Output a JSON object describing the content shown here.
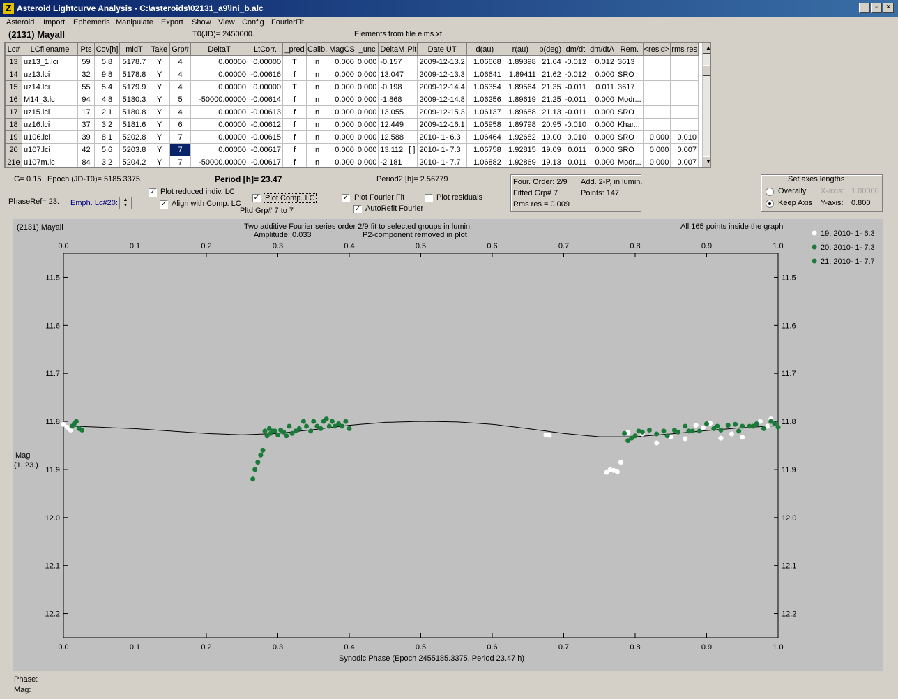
{
  "window": {
    "icon_letter": "Z",
    "title": "Asteroid Lightcurve Analysis - C:\\asteroids\\02131_a9\\ini_b.alc",
    "minimize": "_",
    "restore": "▫",
    "close": "×"
  },
  "menu": [
    "Asteroid",
    "Import",
    "Ephemeris",
    "Manipulate",
    "Export",
    "Show",
    "View",
    "Config",
    "FourierFit"
  ],
  "header": {
    "asteroid": "(2131) Mayall",
    "t0": "T0(JD)= 2450000.",
    "elements": "Elements from file elms.xt"
  },
  "table": {
    "columns": [
      "Lc#",
      "LCfilename",
      "Pts",
      "Cov[h]",
      "midT",
      "Take",
      "Grp#",
      "DeltaT",
      "LtCorr.",
      "_pred",
      "Calib.",
      "MagCS",
      "_unc",
      "DeltaM",
      "Plt",
      "Date UT",
      "d(au)",
      "r(au)",
      "p(deg)",
      "dm/dt",
      "dm/dtA",
      "Rem.",
      "<resid>",
      "rms res"
    ],
    "rows": [
      [
        "13",
        "uz13_1.lci",
        "59",
        "5.8",
        "5178.7",
        "Y",
        "4",
        "0.00000",
        "0.00000",
        "T",
        "n",
        "0.000",
        "0.000",
        "-0.157",
        "",
        "2009-12-13.2",
        "1.06668",
        "1.89398",
        "21.64",
        "-0.012",
        "0.012",
        "3613",
        "",
        ""
      ],
      [
        "14",
        "uz13.lci",
        "32",
        "9.8",
        "5178.8",
        "Y",
        "4",
        "0.00000",
        "-0.00616",
        "f",
        "n",
        "0.000",
        "0.000",
        "13.047",
        "",
        "2009-12-13.3",
        "1.06641",
        "1.89411",
        "21.62",
        "-0.012",
        "0.000",
        "SRO",
        "",
        ""
      ],
      [
        "15",
        "uz14.lci",
        "55",
        "5.4",
        "5179.9",
        "Y",
        "4",
        "0.00000",
        "0.00000",
        "T",
        "n",
        "0.000",
        "0.000",
        "-0.198",
        "",
        "2009-12-14.4",
        "1.06354",
        "1.89564",
        "21.35",
        "-0.011",
        "0.011",
        "3617",
        "",
        ""
      ],
      [
        "16",
        "M14_3.lc",
        "94",
        "4.8",
        "5180.3",
        "Y",
        "5",
        "-50000.00000",
        "-0.00614",
        "f",
        "n",
        "0.000",
        "0.000",
        "-1.868",
        "",
        "2009-12-14.8",
        "1.06256",
        "1.89619",
        "21.25",
        "-0.011",
        "0.000",
        "Modr...",
        "",
        ""
      ],
      [
        "17",
        "uz15.lci",
        "17",
        "2.1",
        "5180.8",
        "Y",
        "4",
        "0.00000",
        "-0.00613",
        "f",
        "n",
        "0.000",
        "0.000",
        "13.055",
        "",
        "2009-12-15.3",
        "1.06137",
        "1.89688",
        "21.13",
        "-0.011",
        "0.000",
        "SRO",
        "",
        ""
      ],
      [
        "18",
        "uz16.lci",
        "37",
        "3.2",
        "5181.6",
        "Y",
        "6",
        "0.00000",
        "-0.00612",
        "f",
        "n",
        "0.000",
        "0.000",
        "12.449",
        "",
        "2009-12-16.1",
        "1.05958",
        "1.89798",
        "20.95",
        "-0.010",
        "0.000",
        "Khar...",
        "",
        ""
      ],
      [
        "19",
        "u106.lci",
        "39",
        "8.1",
        "5202.8",
        "Y",
        "7",
        "0.00000",
        "-0.00615",
        "f",
        "n",
        "0.000",
        "0.000",
        "12.588",
        "",
        "2010- 1- 6.3",
        "1.06464",
        "1.92682",
        "19.00",
        "0.010",
        "0.000",
        "SRO",
        "0.000",
        "0.010"
      ],
      [
        "20",
        "u107.lci",
        "42",
        "5.6",
        "5203.8",
        "Y",
        "7",
        "0.00000",
        "-0.00617",
        "f",
        "n",
        "0.000",
        "0.000",
        "13.112",
        "[ ]",
        "2010- 1- 7.3",
        "1.06758",
        "1.92815",
        "19.09",
        "0.011",
        "0.000",
        "SRO",
        "0.000",
        "0.007"
      ],
      [
        "21e",
        "u107m.lc",
        "84",
        "3.2",
        "5204.2",
        "Y",
        "7",
        "-50000.00000",
        "-0.00617",
        "f",
        "n",
        "0.000",
        "0.000",
        "-2.181",
        "",
        "2010- 1- 7.7",
        "1.06882",
        "1.92869",
        "19.13",
        "0.011",
        "0.000",
        "Modr...",
        "0.000",
        "0.007"
      ]
    ]
  },
  "controls": {
    "g": "G= 0.15",
    "epoch": "Epoch (JD-T0)= 5185.3375",
    "period": "Period [h]= 23.47",
    "period2": "Period2 [h]= 2.56779",
    "phaseref": "PhaseRef= 23.",
    "emph": "Emph. Lc#20:",
    "plot_reduced": "Plot reduced indiv. LC",
    "align": "Align with Comp. LC",
    "plot_comp": "Plot Comp. LC",
    "plotted_grp": "Pltd Grp#  7   to   7",
    "plot_fourier": "Plot Fourier Fit",
    "autorefit": "AutoRefit Fourier",
    "plot_residuals": "Plot residuals",
    "four_order": "Four. Order:  2/9",
    "add2p": "Add. 2-P, in lumin.",
    "fitted_grp": "Fitted Grp# 7",
    "points": "Points: 147",
    "rms": "Rms res      = 0.009",
    "axes_title": "Set axes lengths",
    "overally": "Overally",
    "keep_axis": "Keep Axis",
    "xaxis_lbl": "X-axis:",
    "xaxis_val": "1.00000",
    "yaxis_lbl": "Y-axis:",
    "yaxis_val": "0.800"
  },
  "graph": {
    "asteroid": "(2131) Mayall",
    "title1": "Two additive Fourier series order 2/9 fit to selected groups in lumin.",
    "title2": "Amplitude: 0.033",
    "title3": "P2-component removed in plot",
    "inside": "All 165 points inside the graph",
    "ylabel1": "Mag",
    "ylabel2": "(1, 23.)",
    "xlabel": "Synodic Phase (Epoch 2455185.3375, Period 23.47 h)",
    "phase_readout": "Phase:",
    "mag_readout": "Mag:"
  },
  "colors": {
    "white_series": "#ffffff",
    "green_series": "#1a7a3a",
    "curve": "#000000"
  },
  "chart_data": {
    "type": "scatter",
    "xlabel": "Synodic Phase (Epoch 2455185.3375, Period 23.47 h)",
    "ylabel": "Mag (1, 23.)",
    "xlim": [
      0.0,
      1.0
    ],
    "ylim": [
      12.25,
      11.45
    ],
    "x_ticks": [
      "0.0",
      "0.1",
      "0.2",
      "0.3",
      "0.4",
      "0.5",
      "0.6",
      "0.7",
      "0.8",
      "0.9",
      "1.0"
    ],
    "y_ticks": [
      "11.5",
      "11.6",
      "11.7",
      "11.8",
      "11.9",
      "12.0",
      "12.1",
      "12.2"
    ],
    "legend": [
      "19; 2010- 1- 6.3",
      "20; 2010- 1- 7.3",
      "21; 2010- 1- 7.7"
    ],
    "series": [
      {
        "name": "19; 2010- 1- 6.3",
        "color": "#ffffff",
        "x": [
          0.0,
          0.005,
          0.01,
          0.675,
          0.68,
          0.76,
          0.765,
          0.77,
          0.775,
          0.78,
          0.79,
          0.81,
          0.83,
          0.85,
          0.87,
          0.885,
          0.895,
          0.905,
          0.92,
          0.935,
          0.95,
          0.96,
          0.975,
          0.985,
          0.99
        ],
        "y": [
          11.806,
          11.812,
          11.818,
          11.828,
          11.829,
          11.906,
          11.9,
          11.902,
          11.905,
          11.885,
          11.823,
          11.826,
          11.845,
          11.832,
          11.836,
          11.808,
          11.813,
          11.804,
          11.835,
          11.826,
          11.833,
          11.81,
          11.8,
          11.81,
          11.795
        ]
      },
      {
        "name": "20; 2010- 1- 7.3",
        "color": "#1a7a3a",
        "x": [
          0.012,
          0.015,
          0.018,
          0.022,
          0.026,
          0.265,
          0.268,
          0.272,
          0.276,
          0.279,
          0.282,
          0.285,
          0.288,
          0.29,
          0.293,
          0.296,
          0.3,
          0.304,
          0.308,
          0.312,
          0.316,
          0.32,
          0.325,
          0.33,
          0.336,
          0.34,
          0.346,
          0.35,
          0.355,
          0.36,
          0.364,
          0.368,
          0.372,
          0.376,
          0.38,
          0.385,
          0.39,
          0.395,
          0.4
        ],
        "y": [
          11.81,
          11.805,
          11.8,
          11.815,
          11.818,
          11.92,
          11.9,
          11.885,
          11.87,
          11.86,
          11.82,
          11.83,
          11.815,
          11.825,
          11.82,
          11.82,
          11.828,
          11.818,
          11.822,
          11.83,
          11.81,
          11.825,
          11.82,
          11.815,
          11.8,
          11.81,
          11.82,
          11.8,
          11.81,
          11.815,
          11.8,
          11.795,
          11.81,
          11.8,
          11.81,
          11.805,
          11.81,
          11.8,
          11.815
        ]
      },
      {
        "name": "21; 2010- 1- 7.7",
        "color": "#1a7a3a",
        "x": [
          0.785,
          0.79,
          0.795,
          0.8,
          0.805,
          0.81,
          0.82,
          0.83,
          0.84,
          0.845,
          0.855,
          0.86,
          0.87,
          0.875,
          0.88,
          0.89,
          0.9,
          0.91,
          0.915,
          0.92,
          0.93,
          0.94,
          0.945,
          0.95,
          0.96,
          0.965,
          0.97,
          0.98,
          0.99,
          0.995,
          1.0
        ],
        "y": [
          11.825,
          11.84,
          11.835,
          11.83,
          11.82,
          11.822,
          11.818,
          11.826,
          11.82,
          11.83,
          11.818,
          11.822,
          11.81,
          11.82,
          11.82,
          11.82,
          11.805,
          11.815,
          11.81,
          11.818,
          11.808,
          11.806,
          11.82,
          11.81,
          11.81,
          11.81,
          11.805,
          11.815,
          11.8,
          11.805,
          11.812
        ]
      }
    ],
    "fourier_curve": {
      "x": [
        0.0,
        0.05,
        0.1,
        0.15,
        0.2,
        0.25,
        0.3,
        0.35,
        0.4,
        0.45,
        0.5,
        0.55,
        0.6,
        0.65,
        0.7,
        0.75,
        0.8,
        0.85,
        0.9,
        0.95,
        1.0
      ],
      "y": [
        11.809,
        11.812,
        11.815,
        11.82,
        11.825,
        11.828,
        11.825,
        11.817,
        11.808,
        11.802,
        11.8,
        11.801,
        11.806,
        11.815,
        11.825,
        11.832,
        11.832,
        11.826,
        11.819,
        11.813,
        11.809
      ]
    }
  }
}
